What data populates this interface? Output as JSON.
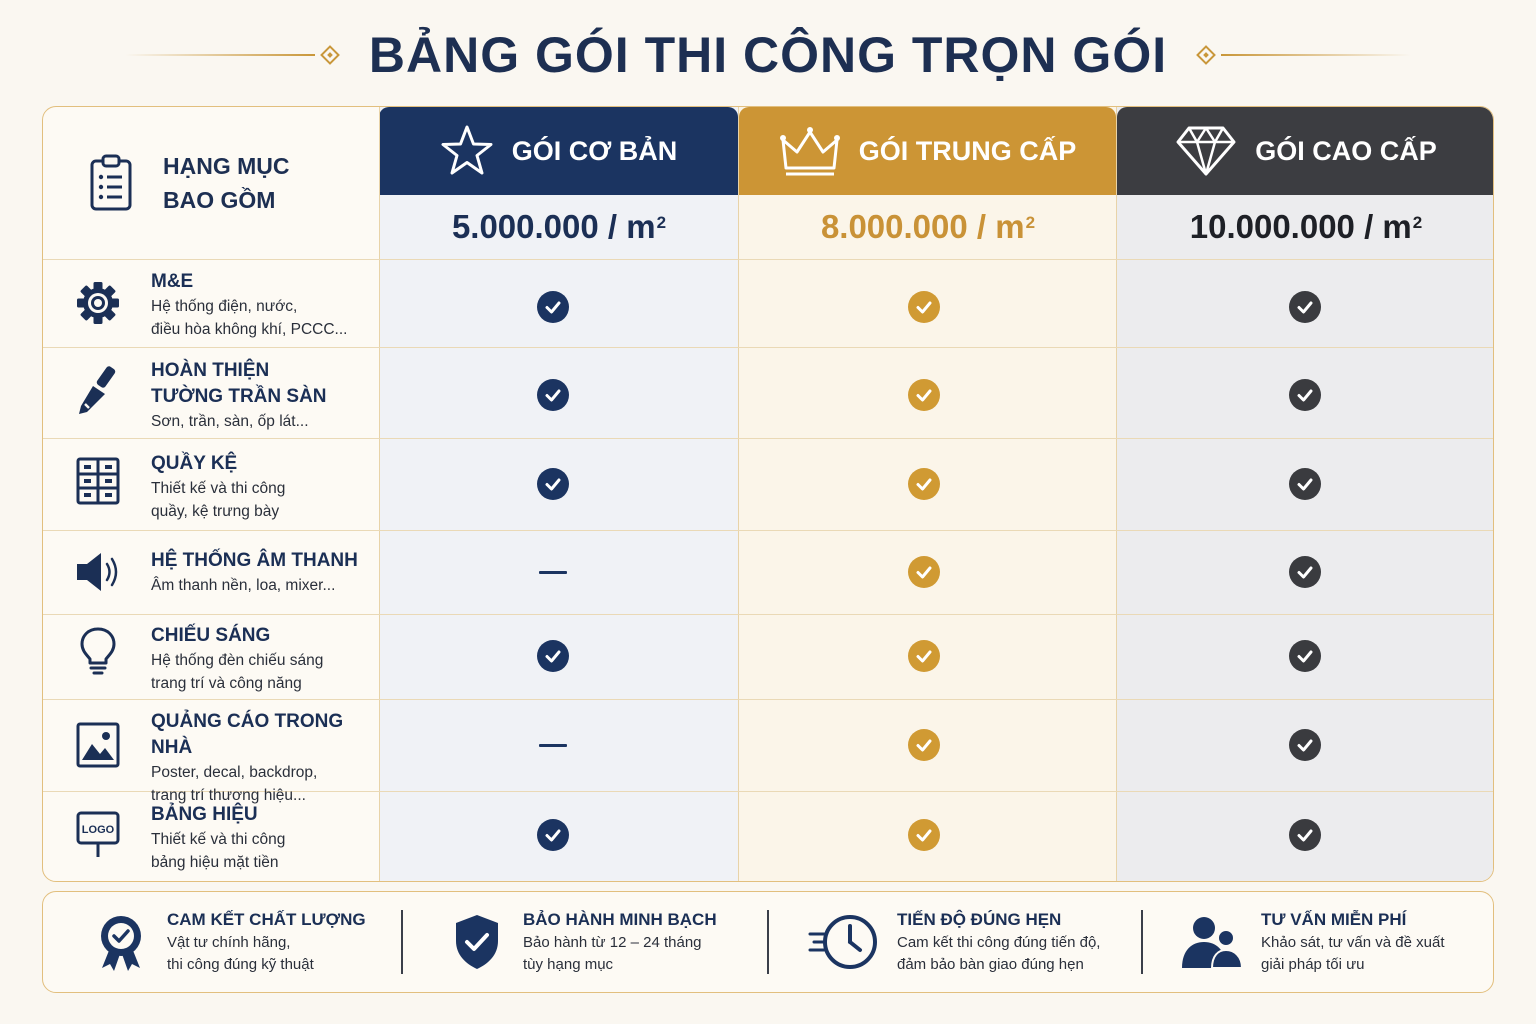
{
  "title": "BẢNG GÓI THI CÔNG TRỌN GÓI",
  "category_header": {
    "line1": "HẠNG MỤC",
    "line2": "BAO GỒM",
    "icon": "clipboard-list-icon"
  },
  "packages": [
    {
      "name": "GÓI CƠ BẢN",
      "price": "5.000.000 / m",
      "unit_sup": "2",
      "icon": "star-icon",
      "color": "#1b3461"
    },
    {
      "name": "GÓI TRUNG CẤP",
      "price": "8.000.000 / m",
      "unit_sup": "2",
      "icon": "crown-icon",
      "color": "#cc9535"
    },
    {
      "name": "GÓI CAO CẤP",
      "price": "10.000.000 / m",
      "unit_sup": "2",
      "icon": "diamond-icon",
      "color": "#3c3d41"
    }
  ],
  "rows": [
    {
      "name": [
        "M&E"
      ],
      "desc": [
        "Hệ thống điện, nước,",
        "điều hòa không khí, PCCC..."
      ],
      "icon": "gear-icon",
      "included": [
        true,
        true,
        true
      ]
    },
    {
      "name": [
        "HOÀN THIỆN",
        "TƯỜNG TRẦN SÀN"
      ],
      "desc": [
        "Sơn, trần, sàn, ốp lát..."
      ],
      "icon": "paint-brush-icon",
      "included": [
        true,
        true,
        true
      ]
    },
    {
      "name": [
        "QUẦY KỆ"
      ],
      "desc": [
        "Thiết kế và thi công",
        "quầy, kệ trưng bày"
      ],
      "icon": "shelf-icon",
      "included": [
        true,
        true,
        true
      ]
    },
    {
      "name": [
        "HỆ THỐNG ÂM THANH"
      ],
      "desc": [
        "Âm thanh nền, loa, mixer..."
      ],
      "icon": "speaker-icon",
      "included": [
        false,
        true,
        true
      ]
    },
    {
      "name": [
        "CHIẾU SÁNG"
      ],
      "desc": [
        "Hệ thống đèn chiếu sáng",
        "trang trí và công năng"
      ],
      "icon": "lightbulb-icon",
      "included": [
        true,
        true,
        true
      ]
    },
    {
      "name": [
        "QUẢNG CÁO TRONG NHÀ"
      ],
      "desc": [
        "Poster, decal, backdrop,",
        "trang trí thương hiệu..."
      ],
      "icon": "image-icon",
      "included": [
        false,
        true,
        true
      ]
    },
    {
      "name": [
        "BẢNG HIỆU"
      ],
      "desc": [
        "Thiết kế và thi công",
        "bảng hiệu mặt tiền"
      ],
      "icon": "logo-sign-icon",
      "icon_text": "LOGO",
      "included": [
        true,
        true,
        true
      ]
    }
  ],
  "footer": [
    {
      "title": "CAM KẾT CHẤT LƯỢNG",
      "desc": [
        "Vật tư chính hãng,",
        "thi công đúng kỹ thuật"
      ],
      "icon": "award-badge-icon"
    },
    {
      "title": "BẢO HÀNH MINH BẠCH",
      "desc": [
        "Bảo hành từ 12 – 24 tháng",
        "tùy hạng mục"
      ],
      "icon": "shield-check-icon"
    },
    {
      "title": "TIẾN ĐỘ ĐÚNG HẸN",
      "desc": [
        "Cam kết thi công đúng tiến độ,",
        "đảm bảo bàn giao đúng hẹn"
      ],
      "icon": "fast-clock-icon"
    },
    {
      "title": "TƯ VẤN MIỄN PHÍ",
      "desc": [
        "Khảo sát, tư vấn và đề xuất",
        "giải pháp tối ưu"
      ],
      "icon": "consultants-icon"
    }
  ]
}
